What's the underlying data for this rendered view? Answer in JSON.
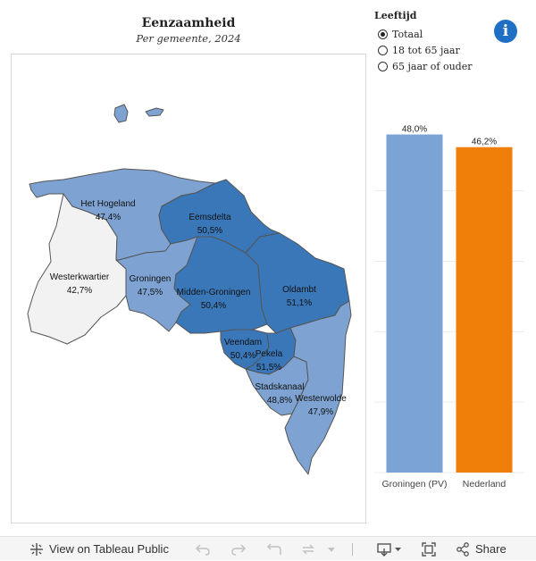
{
  "header": {
    "title": "Eenzaamheid",
    "subtitle": "Per gemeente, 2024"
  },
  "filter": {
    "title": "Leeftijd",
    "options": [
      "Totaal",
      "18 tot 65 jaar",
      "65 jaar of ouder"
    ],
    "selected": "Totaal"
  },
  "info_icon": "info-icon",
  "map": {
    "municipalities": [
      {
        "name": "Het Hogeland",
        "value": "47,4%"
      },
      {
        "name": "Eemsdelta",
        "value": "50,5%"
      },
      {
        "name": "Westerkwartier",
        "value": "42,7%"
      },
      {
        "name": "Groningen",
        "value": "47,5%"
      },
      {
        "name": "Midden-Groningen",
        "value": "50,4%"
      },
      {
        "name": "Oldambt",
        "value": "51,1%"
      },
      {
        "name": "Veendam",
        "value": "50,4%"
      },
      {
        "name": "Pekela",
        "value": "51,5%"
      },
      {
        "name": "Stadskanaal",
        "value": "48,8%"
      },
      {
        "name": "Westerwolde",
        "value": "47,9%"
      }
    ],
    "colors": {
      "very_light": "#f2f2f2",
      "light": "#7ea3d3",
      "medium": "#5b8cc9",
      "dark": "#3a77b9",
      "border": "#555555"
    }
  },
  "chart_data": {
    "type": "bar",
    "categories": [
      "Groningen (PV)",
      "Nederland"
    ],
    "values": [
      48.0,
      46.2
    ],
    "value_labels": [
      "48,0%",
      "46,2%"
    ],
    "colors": [
      "#7ba3d6",
      "#f07f09"
    ],
    "ylim": [
      0,
      52
    ],
    "grid": true
  },
  "toolbar": {
    "view_label": "View on Tableau Public",
    "share_label": "Share"
  }
}
